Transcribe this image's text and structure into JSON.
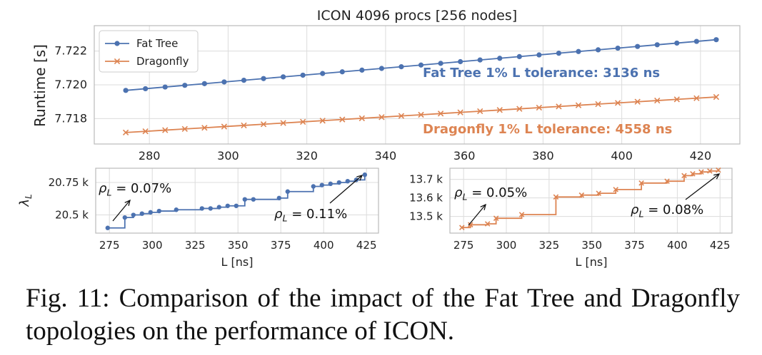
{
  "chart_data": [
    {
      "type": "line",
      "title": "ICON 4096 procs [256 nodes]",
      "xlabel": "",
      "ylabel": "Runtime [s]",
      "xlim": [
        266,
        430
      ],
      "ylim": [
        7.7165,
        7.7235
      ],
      "xticks": [
        280,
        300,
        320,
        340,
        360,
        380,
        400,
        420
      ],
      "yticks": [
        7.718,
        7.72,
        7.722
      ],
      "ytick_labels": [
        "7.718",
        "7.720",
        "7.722"
      ],
      "grid": true,
      "legend_position": "top-left",
      "series": [
        {
          "name": "Fat Tree",
          "marker": "circle",
          "color": "#4c72b0",
          "x": [
            274,
            279,
            284,
            289,
            294,
            299,
            304,
            309,
            314,
            319,
            324,
            329,
            334,
            339,
            344,
            349,
            354,
            359,
            364,
            369,
            374,
            379,
            384,
            389,
            394,
            399,
            404,
            409,
            414,
            419,
            424
          ],
          "y": [
            7.71967,
            7.71977,
            7.71987,
            7.71997,
            7.72007,
            7.72017,
            7.72027,
            7.72037,
            7.72047,
            7.72057,
            7.72067,
            7.72077,
            7.72087,
            7.72097,
            7.72107,
            7.72117,
            7.72127,
            7.72137,
            7.72147,
            7.72157,
            7.72167,
            7.72177,
            7.72187,
            7.72197,
            7.72207,
            7.72217,
            7.72227,
            7.72237,
            7.72247,
            7.72257,
            7.72267
          ]
        },
        {
          "name": "Dragonfly",
          "marker": "x",
          "color": "#dd8452",
          "x": [
            274,
            279,
            284,
            289,
            294,
            299,
            304,
            309,
            314,
            319,
            324,
            329,
            334,
            339,
            344,
            349,
            354,
            359,
            364,
            369,
            374,
            379,
            384,
            389,
            394,
            399,
            404,
            409,
            414,
            419,
            424
          ],
          "y": [
            7.71718,
            7.71725,
            7.71732,
            7.71739,
            7.71746,
            7.71753,
            7.7176,
            7.71767,
            7.71774,
            7.71781,
            7.71788,
            7.71795,
            7.71802,
            7.71809,
            7.71816,
            7.71823,
            7.7183,
            7.71837,
            7.71844,
            7.71851,
            7.71858,
            7.71865,
            7.71872,
            7.71879,
            7.71886,
            7.71893,
            7.719,
            7.71907,
            7.71914,
            7.71921,
            7.71928
          ]
        }
      ],
      "annotations": [
        {
          "text": "Fat Tree 1% L tolerance: 3136 ns",
          "color": "#4c72b0"
        },
        {
          "text": "Dragonfly 1% L tolerance: 4558 ns",
          "color": "#dd8452"
        }
      ]
    },
    {
      "type": "line",
      "step": true,
      "xlabel": "L [ns]",
      "ylabel": "λ_L",
      "xlim": [
        267,
        432
      ],
      "ylim": [
        20.36,
        20.86
      ],
      "xticks": [
        275,
        300,
        325,
        350,
        375,
        400,
        425
      ],
      "yticks": [
        20.5,
        20.75
      ],
      "ytick_labels": [
        "20.5 k",
        "20.75 k"
      ],
      "grid": true,
      "series": [
        {
          "name": "",
          "marker": "circle",
          "color": "#4c72b0",
          "x": [
            274,
            284,
            289,
            294,
            299,
            304,
            314,
            329,
            334,
            339,
            344,
            349,
            354,
            359,
            374,
            379,
            394,
            399,
            404,
            409,
            414,
            419,
            424
          ],
          "y": [
            20.4,
            20.48,
            20.5,
            20.51,
            20.52,
            20.53,
            20.54,
            20.55,
            20.55,
            20.56,
            20.57,
            20.57,
            20.62,
            20.62,
            20.63,
            20.68,
            20.72,
            20.73,
            20.74,
            20.75,
            20.76,
            20.77,
            20.81
          ]
        }
      ],
      "annotations": [
        {
          "text": "ρ_L = 0.07%"
        },
        {
          "text": "ρ_L = 0.11%"
        }
      ]
    },
    {
      "type": "line",
      "step": true,
      "xlabel": "L [ns]",
      "ylabel": "",
      "xlim": [
        267,
        432
      ],
      "ylim": [
        13.41,
        13.76
      ],
      "xticks": [
        275,
        300,
        325,
        350,
        375,
        400,
        425
      ],
      "yticks": [
        13.5,
        13.6,
        13.7
      ],
      "ytick_labels": [
        "13.5 k",
        "13.6 k",
        "13.7 k"
      ],
      "grid": true,
      "series": [
        {
          "name": "",
          "marker": "x",
          "color": "#dd8452",
          "x": [
            274,
            279,
            289,
            294,
            309,
            329,
            344,
            354,
            364,
            379,
            394,
            404,
            409,
            414,
            419,
            424
          ],
          "y": [
            13.44,
            13.455,
            13.46,
            13.49,
            13.51,
            13.605,
            13.615,
            13.625,
            13.645,
            13.68,
            13.69,
            13.72,
            13.73,
            13.74,
            13.745,
            13.75
          ]
        }
      ],
      "annotations": [
        {
          "text": "ρ_L = 0.05%"
        },
        {
          "text": "ρ_L = 0.08%"
        }
      ]
    }
  ],
  "caption": "Fig. 11: Comparison of the impact of the Fat Tree and Dragonfly topologies on the performance of ICON."
}
